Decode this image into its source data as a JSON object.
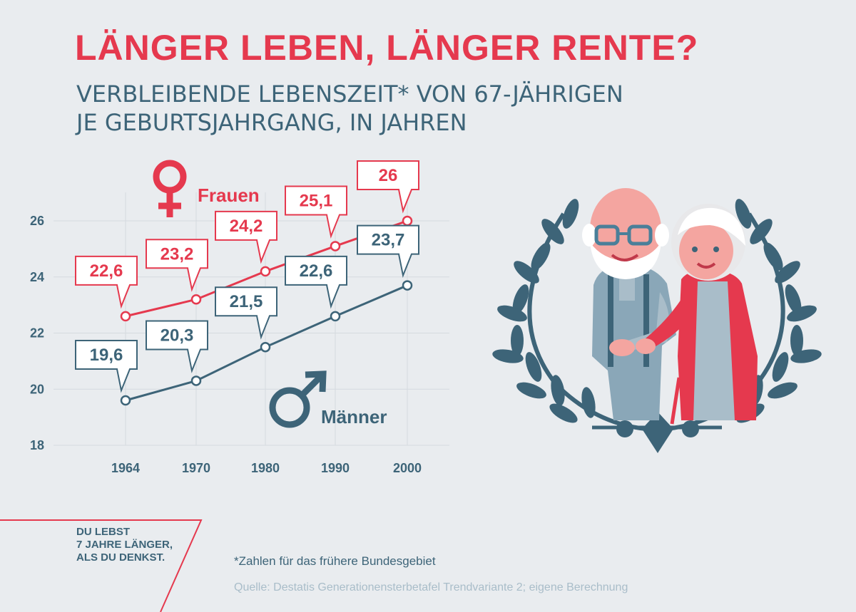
{
  "title": "LÄNGER LEBEN, LÄNGER RENTE?",
  "subtitle": [
    "VERBLEIBENDE LEBENSZEIT* VON 67-JÄHRIGEN",
    "JE GEBURTSJAHRGANG, IN JAHREN"
  ],
  "tagline": [
    "DU LEBST",
    "7 JAHRE LÄNGER,",
    "ALS DU DENKST."
  ],
  "footnote": "*Zahlen für das frühere Bundesgebiet",
  "source": "Quelle: Destatis Generationensterbetafel Trendvariante 2; eigene Berechnung",
  "colors": {
    "frauen": "#e5394e",
    "maenner": "#3d6478",
    "source": "#a9bdc9",
    "grid": "#d5dadf"
  },
  "icons": [
    "female-symbol-icon",
    "male-symbol-icon",
    "laurel-wreath-icon",
    "elderly-couple-illustration"
  ],
  "chart_data": {
    "type": "line",
    "x": [
      1964,
      1970,
      1980,
      1990,
      2000
    ],
    "xticks": [
      "1964",
      "1970",
      "1980",
      "1990",
      "2000"
    ],
    "yticks": [
      "18",
      "20",
      "22",
      "24",
      "26"
    ],
    "ylim": [
      18,
      26
    ],
    "grid": true,
    "series": [
      {
        "name": "Frauen",
        "values": [
          22.6,
          23.2,
          24.2,
          25.1,
          26
        ],
        "labels": [
          "22,6",
          "23,2",
          "24,2",
          "25,1",
          "26"
        ]
      },
      {
        "name": "Männer",
        "values": [
          19.6,
          20.3,
          21.5,
          22.6,
          23.7
        ],
        "labels": [
          "19,6",
          "20,3",
          "21,5",
          "22,6",
          "23,7"
        ]
      }
    ]
  }
}
